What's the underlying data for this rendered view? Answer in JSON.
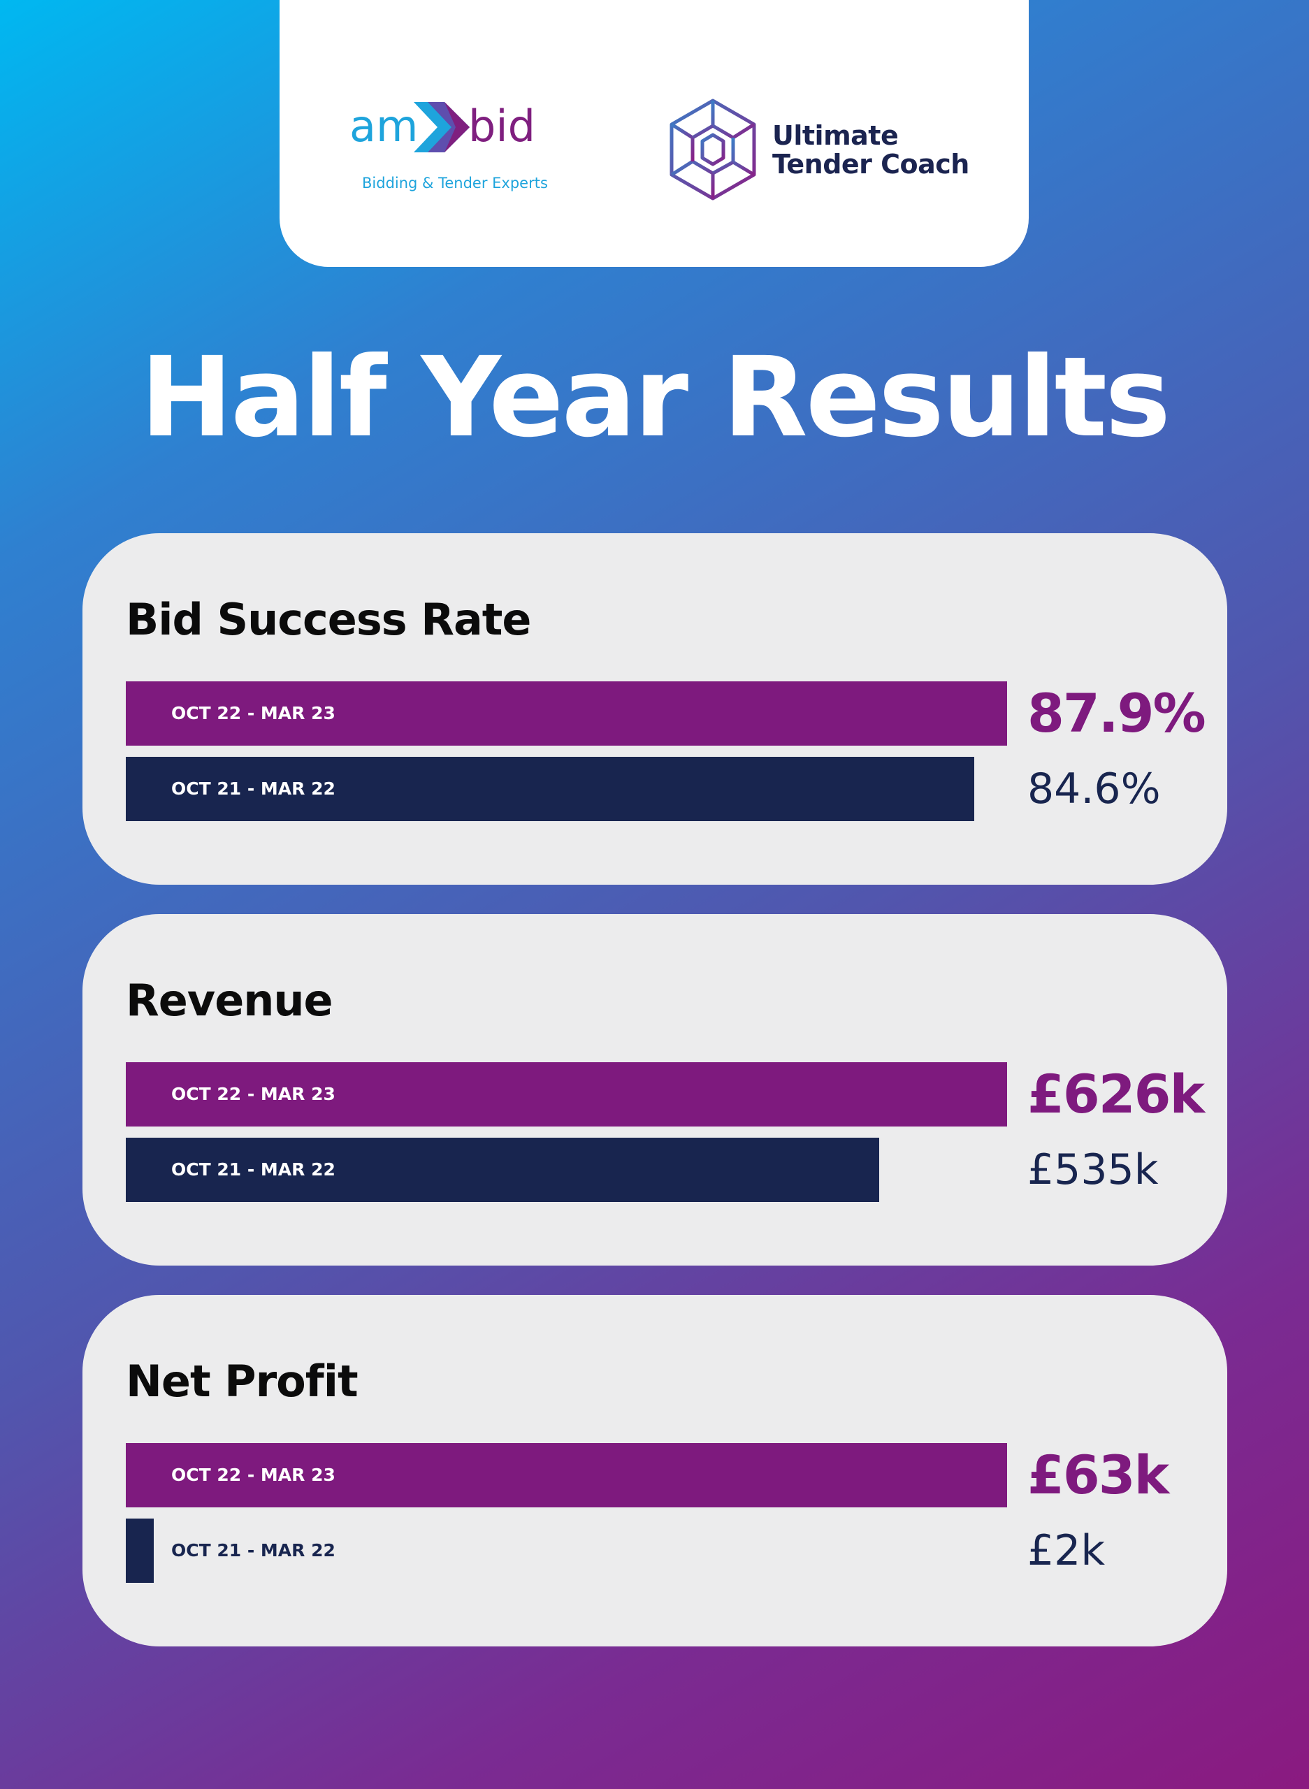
{
  "logos": {
    "ambid": {
      "part1": "am",
      "part2": "bid",
      "tagline": "Bidding & Tender Experts"
    },
    "utc": {
      "line1": "Ultimate",
      "line2": "Tender Coach"
    }
  },
  "title": "Half Year Results",
  "colors": {
    "current": "#7e1a7e",
    "previous": "#18254f",
    "card": "#ececed"
  },
  "chart_data": [
    {
      "type": "bar",
      "orientation": "horizontal",
      "title": "Bid Success Rate",
      "categories": [
        "OCT 22 - MAR 23",
        "OCT 21 - MAR 22"
      ],
      "values": [
        87.9,
        84.6
      ],
      "value_labels": [
        "87.9%",
        "84.6%"
      ],
      "unit": "%"
    },
    {
      "type": "bar",
      "orientation": "horizontal",
      "title": "Revenue",
      "categories": [
        "OCT 22 - MAR 23",
        "OCT 21 - MAR 22"
      ],
      "values": [
        626,
        535
      ],
      "value_labels": [
        "£626k",
        "£535k"
      ],
      "unit": "£k"
    },
    {
      "type": "bar",
      "orientation": "horizontal",
      "title": "Net Profit",
      "categories": [
        "OCT 22 - MAR 23",
        "OCT 21 - MAR 22"
      ],
      "values": [
        63,
        2
      ],
      "value_labels": [
        "£63k",
        "£2k"
      ],
      "unit": "£k"
    }
  ]
}
